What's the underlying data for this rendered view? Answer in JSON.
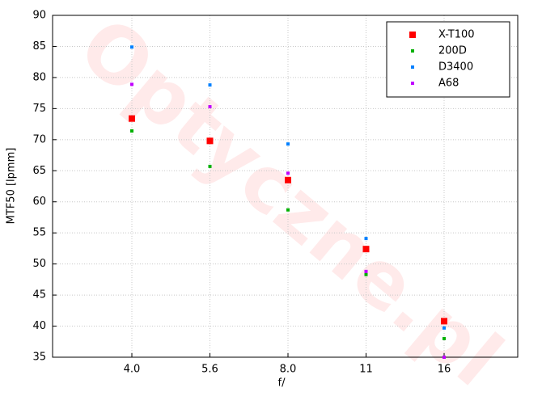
{
  "chart_data": {
    "type": "scatter",
    "xlabel": "f/",
    "ylabel": "MTF50 [lpmm]",
    "watermark": "Optyczne.pl",
    "categories": [
      "4.0",
      "5.6",
      "8.0",
      "11",
      "16"
    ],
    "series": [
      {
        "name": "X-T100",
        "color": "#ff0000",
        "values": [
          73.4,
          69.8,
          63.5,
          52.4,
          40.8
        ]
      },
      {
        "name": "200D",
        "color": "#00b000",
        "values": [
          71.4,
          65.7,
          58.7,
          48.3,
          38.0
        ]
      },
      {
        "name": "D3400",
        "color": "#0080ff",
        "values": [
          84.9,
          78.8,
          69.3,
          54.1,
          39.7
        ]
      },
      {
        "name": "A68",
        "color": "#c000ff",
        "values": [
          78.9,
          75.3,
          64.6,
          48.8,
          35.0
        ]
      }
    ],
    "ylim": [
      35,
      90
    ],
    "yticks": [
      35,
      40,
      45,
      50,
      55,
      60,
      65,
      70,
      75,
      80,
      85,
      90
    ],
    "grid": true,
    "legend": "top-right"
  }
}
